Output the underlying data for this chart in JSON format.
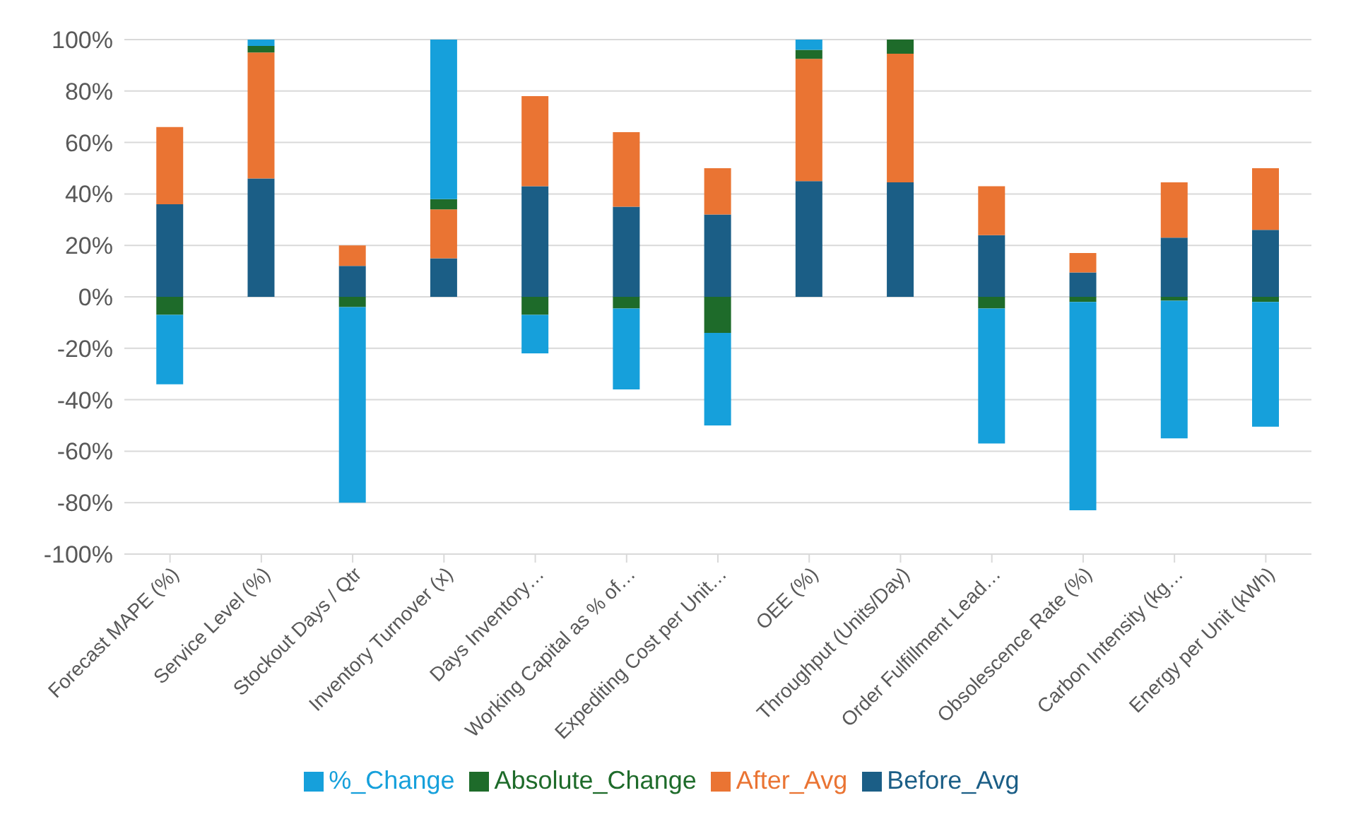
{
  "chart_data": {
    "type": "bar",
    "stacked": true,
    "categories": [
      "Forecast MAPE (%)",
      "Service Level (%)",
      "Stockout Days / Qtr",
      "Inventory Turnover (x)",
      "Days Inventory…",
      "Working Capital as % of…",
      "Expediting Cost per Unit…",
      "OEE (%)",
      "Throughput (Units/Day)",
      "Order Fulfillment Lead…",
      "Obsolescence Rate (%)",
      "Carbon Intensity (kg…",
      "Energy per Unit (kWh)"
    ],
    "series": [
      {
        "name": "Before_Avg",
        "color": "#1b5e86",
        "values": [
          36,
          46,
          12,
          15,
          43,
          35,
          32,
          45,
          44.5,
          24,
          9.5,
          23,
          26
        ]
      },
      {
        "name": "After_Avg",
        "color": "#ea7433",
        "values": [
          30,
          49,
          8,
          19,
          35,
          29,
          18,
          47.5,
          50,
          19,
          7.5,
          21.5,
          24
        ]
      },
      {
        "name": "Absolute_Change",
        "color": "#1e6b2a",
        "values": [
          -7,
          2.5,
          -4,
          4,
          -7,
          -4.5,
          -14,
          3.5,
          5.5,
          -4.5,
          -2,
          -1.5,
          -2
        ]
      },
      {
        "name": "%_Change",
        "color": "#16a0db",
        "values": [
          -27,
          2.5,
          -76,
          62,
          -15,
          -31.5,
          -36,
          4,
          0,
          -52.5,
          -81,
          -53.5,
          -48.5
        ]
      }
    ],
    "ylim": [
      -100,
      100
    ],
    "yticks": [
      {
        "value": -100,
        "label": "-100%"
      },
      {
        "value": -80,
        "label": "-80%"
      },
      {
        "value": -60,
        "label": "-60%"
      },
      {
        "value": -40,
        "label": "-40%"
      },
      {
        "value": -20,
        "label": "-20%"
      },
      {
        "value": 0,
        "label": "0%"
      },
      {
        "value": 20,
        "label": "20%"
      },
      {
        "value": 40,
        "label": "40%"
      },
      {
        "value": 60,
        "label": "60%"
      },
      {
        "value": 80,
        "label": "80%"
      },
      {
        "value": 100,
        "label": "100%"
      }
    ],
    "grid": "y",
    "legend": "bottom"
  }
}
